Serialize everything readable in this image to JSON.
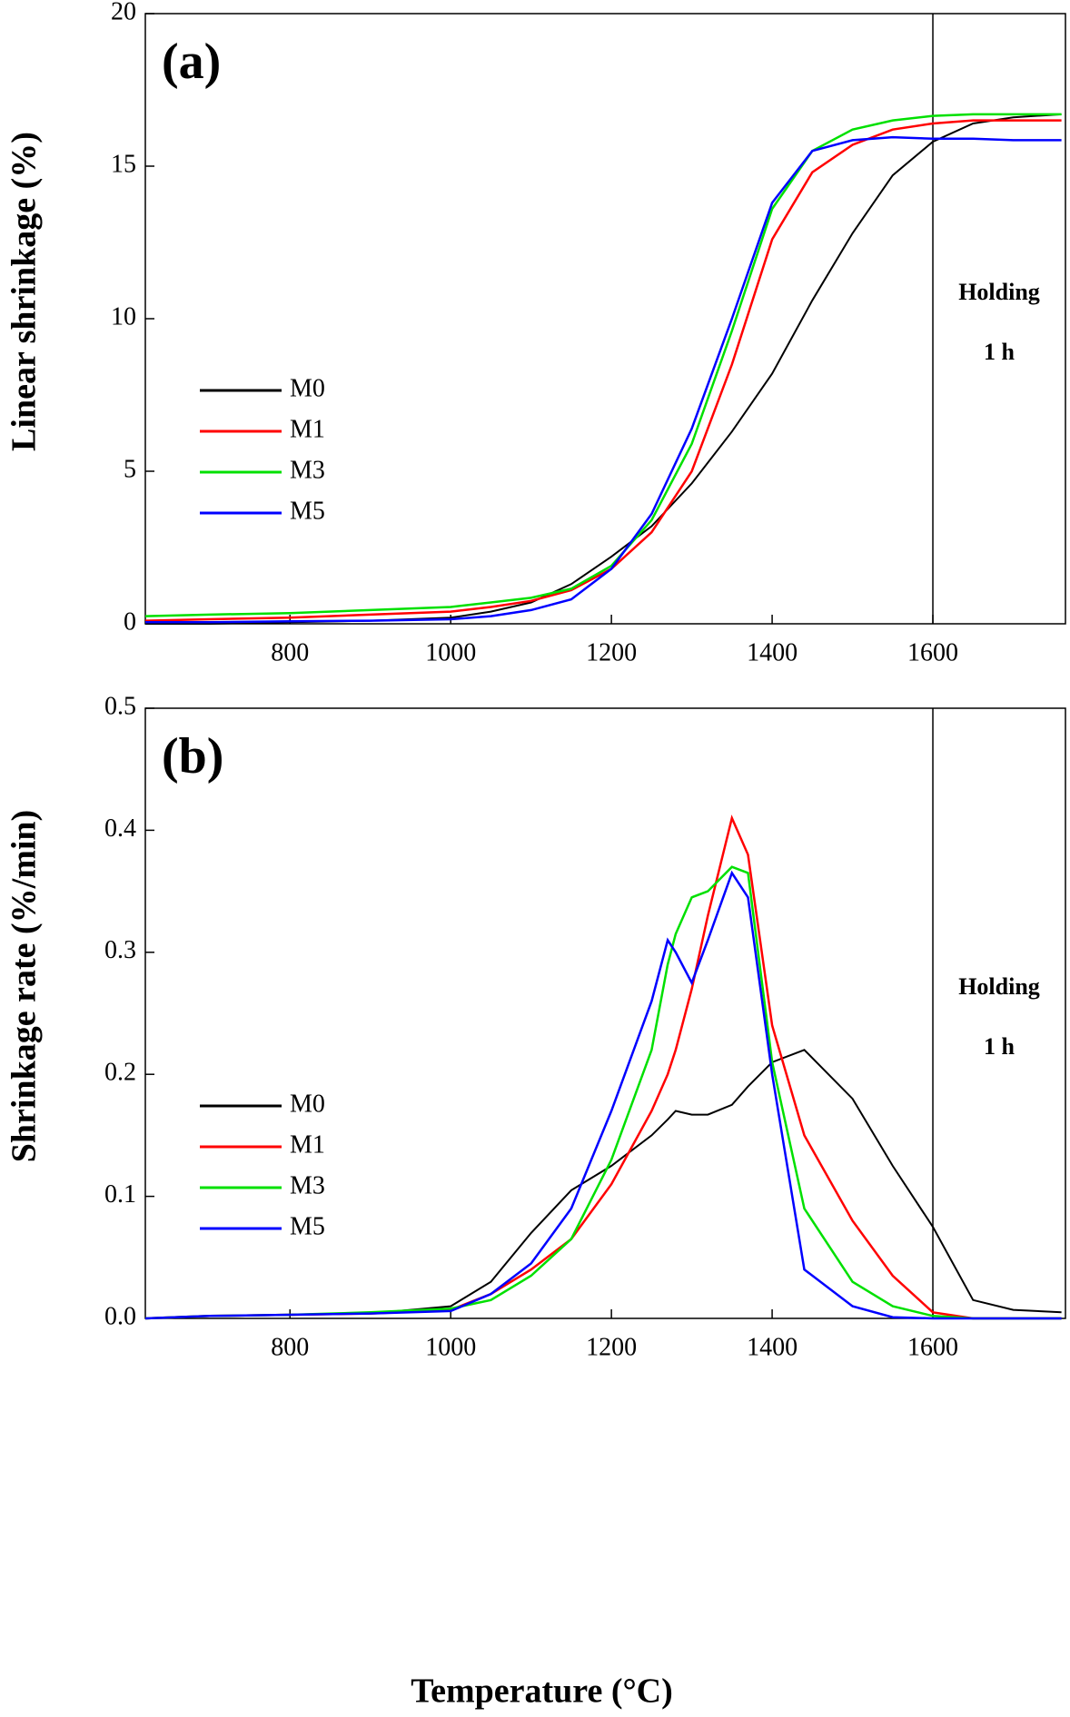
{
  "chart_data": [
    {
      "type": "line",
      "panel_label": "(a)",
      "ylabel": "Linear shrinkage (%)",
      "x": [
        620,
        700,
        800,
        900,
        1000,
        1050,
        1100,
        1150,
        1200,
        1250,
        1300,
        1350,
        1400,
        1450,
        1500,
        1550,
        1600,
        1650,
        1700,
        1760
      ],
      "series": [
        {
          "name": "M0",
          "color": "#000000",
          "values": [
            0,
            0,
            0.05,
            0.1,
            0.2,
            0.4,
            0.7,
            1.3,
            2.2,
            3.2,
            4.6,
            6.3,
            8.2,
            10.6,
            12.8,
            14.7,
            15.8,
            16.4,
            16.6,
            16.7
          ]
        },
        {
          "name": "M1",
          "color": "#ff0000",
          "values": [
            0.1,
            0.15,
            0.2,
            0.3,
            0.4,
            0.55,
            0.75,
            1.1,
            1.8,
            3.0,
            5.0,
            8.5,
            12.6,
            14.8,
            15.7,
            16.2,
            16.4,
            16.5,
            16.5,
            16.5
          ]
        },
        {
          "name": "M3",
          "color": "#00e000",
          "values": [
            0.25,
            0.3,
            0.35,
            0.45,
            0.55,
            0.7,
            0.85,
            1.15,
            1.9,
            3.4,
            5.9,
            9.6,
            13.6,
            15.5,
            16.2,
            16.5,
            16.65,
            16.7,
            16.7,
            16.7
          ]
        },
        {
          "name": "M5",
          "color": "#0000ff",
          "values": [
            0.05,
            0.05,
            0.08,
            0.1,
            0.15,
            0.25,
            0.45,
            0.8,
            1.8,
            3.6,
            6.4,
            10.0,
            13.8,
            15.5,
            15.85,
            15.95,
            15.9,
            15.9,
            15.85,
            15.85
          ]
        }
      ],
      "xlim": [
        620,
        1765
      ],
      "xticks": [
        800,
        1000,
        1200,
        1400,
        1600
      ],
      "ylim": [
        0,
        20
      ],
      "yticks": [
        0,
        5,
        10,
        15,
        20
      ],
      "vline": 1600,
      "annotations": [
        "Holding",
        "1 h"
      ],
      "legend": "center left"
    },
    {
      "type": "line",
      "panel_label": "(b)",
      "ylabel": "Shrinkage rate (%/min)",
      "xlabel": "Temperature (°C)",
      "x": [
        620,
        700,
        800,
        900,
        1000,
        1050,
        1100,
        1150,
        1200,
        1250,
        1270,
        1280,
        1300,
        1320,
        1350,
        1370,
        1400,
        1440,
        1500,
        1550,
        1600,
        1650,
        1700,
        1760
      ],
      "series": [
        {
          "name": "M0",
          "color": "#000000",
          "values": [
            0,
            0.002,
            0.003,
            0.004,
            0.01,
            0.03,
            0.07,
            0.105,
            0.125,
            0.15,
            0.163,
            0.17,
            0.167,
            0.167,
            0.175,
            0.19,
            0.21,
            0.22,
            0.18,
            0.125,
            0.075,
            0.015,
            0.007,
            0.005
          ]
        },
        {
          "name": "M1",
          "color": "#ff0000",
          "values": [
            0,
            0.002,
            0.003,
            0.004,
            0.007,
            0.02,
            0.04,
            0.065,
            0.11,
            0.17,
            0.2,
            0.22,
            0.27,
            0.33,
            0.41,
            0.38,
            0.24,
            0.15,
            0.08,
            0.035,
            0.005,
            0,
            0,
            0
          ]
        },
        {
          "name": "M3",
          "color": "#00e000",
          "values": [
            0,
            0.002,
            0.003,
            0.005,
            0.008,
            0.015,
            0.035,
            0.065,
            0.13,
            0.22,
            0.29,
            0.315,
            0.345,
            0.35,
            0.37,
            0.365,
            0.21,
            0.09,
            0.03,
            0.01,
            0.002,
            0,
            0,
            0
          ]
        },
        {
          "name": "M5",
          "color": "#0000ff",
          "values": [
            0,
            0.002,
            0.003,
            0.004,
            0.006,
            0.02,
            0.045,
            0.09,
            0.17,
            0.26,
            0.31,
            0.3,
            0.275,
            0.31,
            0.365,
            0.345,
            0.2,
            0.04,
            0.01,
            0.001,
            0,
            0,
            0,
            0
          ]
        }
      ],
      "xlim": [
        620,
        1765
      ],
      "xticks": [
        800,
        1000,
        1200,
        1400,
        1600
      ],
      "ylim": [
        0,
        0.5
      ],
      "yticks": [
        {
          "value": 0,
          "label": "0.0"
        },
        0.1,
        0.2,
        0.3,
        0.4,
        0.5
      ],
      "vline": 1600,
      "annotations": [
        "Holding",
        "1 h"
      ],
      "legend": "center left"
    }
  ]
}
